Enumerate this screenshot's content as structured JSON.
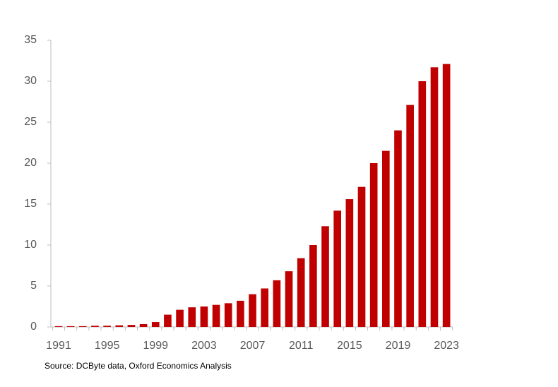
{
  "chart_data": {
    "type": "bar",
    "source": "Source: DCByte data, Oxford Economics Analysis",
    "categories": [
      "1991",
      null,
      null,
      null,
      "1995",
      null,
      null,
      null,
      "1999",
      null,
      null,
      null,
      "2003",
      null,
      null,
      null,
      "2007",
      null,
      null,
      null,
      "2011",
      null,
      null,
      null,
      "2015",
      null,
      null,
      null,
      "2019",
      null,
      null,
      null,
      "2023"
    ],
    "values": [
      0.1,
      0.1,
      0.1,
      0.15,
      0.15,
      0.2,
      0.25,
      0.35,
      0.6,
      1.5,
      2.1,
      2.4,
      2.5,
      2.7,
      2.9,
      3.2,
      4.0,
      4.7,
      5.7,
      6.8,
      8.4,
      10.0,
      12.3,
      14.2,
      15.6,
      17.1,
      20.0,
      21.5,
      24.0,
      27.1,
      30.0,
      31.7,
      32.1
    ],
    "color": "#c00000",
    "ylim": [
      0,
      35
    ],
    "yticks": [
      0,
      5,
      10,
      15,
      20,
      25,
      30,
      35
    ],
    "grid": false
  }
}
